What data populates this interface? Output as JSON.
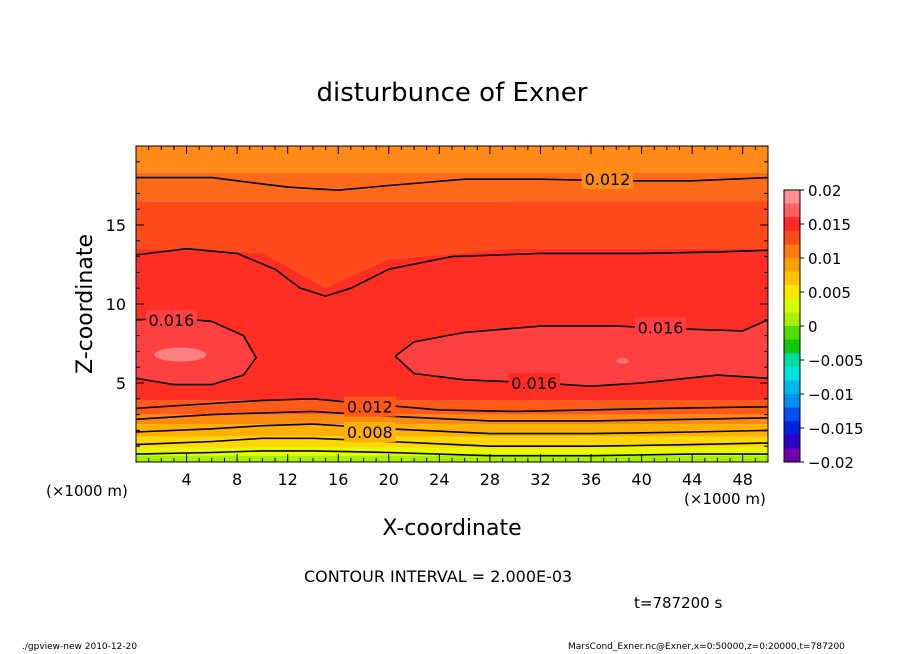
{
  "chart_data": {
    "type": "heatmap",
    "title": "disturbunce of Exner",
    "xlabel": "X-coordinate",
    "ylabel": "Z-coordinate",
    "x_unit": "(×1000 m)",
    "y_unit": "(×1000 m)",
    "xlim": [
      0,
      50
    ],
    "ylim": [
      0,
      20
    ],
    "x_ticks": [
      4,
      8,
      12,
      16,
      20,
      24,
      28,
      32,
      36,
      40,
      44,
      48
    ],
    "y_ticks": [
      5,
      10,
      15
    ],
    "colorbar": {
      "labels": [
        "0.02",
        "0.015",
        "0.01",
        "0.005",
        "0",
        "−0.005",
        "−0.01",
        "−0.015",
        "−0.02"
      ],
      "levels": [
        0.02,
        0.015,
        0.01,
        0.005,
        0,
        -0.005,
        -0.01,
        -0.015,
        -0.02
      ],
      "colors": [
        "#ff9090",
        "#ff6060",
        "#ff2828",
        "#ff4a1c",
        "#ff7a10",
        "#ffa000",
        "#ffc400",
        "#ffe800",
        "#d8ff00",
        "#a8f000",
        "#50e000",
        "#10c800",
        "#00dca0",
        "#00e0e0",
        "#00b8f0",
        "#0090f0",
        "#0050f0",
        "#0020e0",
        "#3000c8",
        "#7000b0"
      ]
    },
    "contour_interval": "CONTOUR INTERVAL = 2.000E-03",
    "contour_labels": [
      "0.012",
      "0.016",
      "0.016",
      "0.016",
      "0.012",
      "0.008"
    ],
    "contours": [
      {
        "level": 0.012,
        "points": [
          [
            0,
            18.0
          ],
          [
            6,
            18.0
          ],
          [
            12,
            17.4
          ],
          [
            16,
            17.2
          ],
          [
            20,
            17.5
          ],
          [
            26,
            17.9
          ],
          [
            32,
            17.9
          ],
          [
            38,
            17.8
          ],
          [
            44,
            17.8
          ],
          [
            50,
            18.0
          ]
        ]
      },
      {
        "level": 0.016,
        "points": [
          [
            0,
            13.1
          ],
          [
            4,
            13.5
          ],
          [
            8,
            13.2
          ],
          [
            11,
            12.2
          ],
          [
            13,
            11.0
          ],
          [
            15,
            10.5
          ],
          [
            17,
            11.0
          ],
          [
            20,
            12.2
          ],
          [
            25,
            13.0
          ],
          [
            32,
            13.2
          ],
          [
            40,
            13.2
          ],
          [
            46,
            13.3
          ],
          [
            50,
            13.4
          ]
        ]
      },
      {
        "level": 0.016,
        "points": [
          [
            0,
            9.0
          ],
          [
            3,
            9.1
          ],
          [
            6,
            8.9
          ],
          [
            8.5,
            8.0
          ],
          [
            9.5,
            6.6
          ],
          [
            8.5,
            5.5
          ],
          [
            6,
            4.9
          ],
          [
            3,
            4.9
          ],
          [
            0,
            5.3
          ]
        ]
      },
      {
        "level": 0.016,
        "points": [
          [
            20.5,
            6.7
          ],
          [
            22,
            7.6
          ],
          [
            26,
            8.2
          ],
          [
            32,
            8.6
          ],
          [
            38,
            8.6
          ],
          [
            44,
            8.4
          ],
          [
            48,
            8.3
          ],
          [
            50,
            9.0
          ],
          [
            50,
            5.3
          ],
          [
            46,
            5.5
          ],
          [
            40,
            5.0
          ],
          [
            36,
            4.8
          ],
          [
            32,
            5.0
          ],
          [
            26,
            5.2
          ],
          [
            22,
            5.6
          ],
          [
            20.5,
            6.7
          ]
        ]
      },
      {
        "level": 0.012,
        "points": [
          [
            0,
            3.4
          ],
          [
            6,
            3.7
          ],
          [
            10,
            3.9
          ],
          [
            14,
            4.0
          ],
          [
            18,
            3.7
          ],
          [
            24,
            3.3
          ],
          [
            30,
            3.2
          ],
          [
            36,
            3.3
          ],
          [
            42,
            3.4
          ],
          [
            50,
            3.5
          ]
        ]
      },
      {
        "level": 0.01,
        "points": [
          [
            0,
            2.7
          ],
          [
            6,
            3.0
          ],
          [
            10,
            3.1
          ],
          [
            14,
            3.2
          ],
          [
            20,
            2.9
          ],
          [
            28,
            2.6
          ],
          [
            36,
            2.6
          ],
          [
            44,
            2.7
          ],
          [
            50,
            2.8
          ]
        ]
      },
      {
        "level": 0.008,
        "points": [
          [
            0,
            1.9
          ],
          [
            6,
            2.1
          ],
          [
            10,
            2.3
          ],
          [
            14,
            2.4
          ],
          [
            20,
            2.1
          ],
          [
            28,
            1.8
          ],
          [
            36,
            1.8
          ],
          [
            44,
            1.9
          ],
          [
            50,
            2.0
          ]
        ]
      },
      {
        "level": 0.006,
        "points": [
          [
            0,
            1.1
          ],
          [
            6,
            1.3
          ],
          [
            10,
            1.5
          ],
          [
            14,
            1.5
          ],
          [
            20,
            1.3
          ],
          [
            28,
            1.0
          ],
          [
            36,
            1.0
          ],
          [
            44,
            1.1
          ],
          [
            50,
            1.2
          ]
        ]
      },
      {
        "level": 0.004,
        "points": [
          [
            0,
            0.5
          ],
          [
            6,
            0.6
          ],
          [
            10,
            0.7
          ],
          [
            14,
            0.7
          ],
          [
            20,
            0.6
          ],
          [
            28,
            0.4
          ],
          [
            36,
            0.4
          ],
          [
            44,
            0.5
          ],
          [
            50,
            0.5
          ]
        ]
      }
    ],
    "fill_bands": [
      {
        "color": "#ff8a18",
        "top": 20,
        "bottom": 18.3
      },
      {
        "color": "#ff6a1a",
        "top": 18.3,
        "bottom": 16.5
      },
      {
        "color": "#ff4a1c",
        "top": 16.5,
        "bottom": 13.5
      },
      {
        "color": "#ff2e24",
        "top": 13.5,
        "bottom": 3.9
      },
      {
        "color": "#ff5a18",
        "top": 3.9,
        "bottom": 3.0
      },
      {
        "color": "#ff8a10",
        "top": 3.0,
        "bottom": 2.4
      },
      {
        "color": "#ffb000",
        "top": 2.4,
        "bottom": 1.6
      },
      {
        "color": "#ffd800",
        "top": 1.6,
        "bottom": 0.9
      },
      {
        "color": "#e8f800",
        "top": 0.9,
        "bottom": 0.4
      },
      {
        "color": "#a8f000",
        "top": 0.4,
        "bottom": 0
      }
    ]
  },
  "footer": {
    "time": "t=787200 s",
    "left": "./gpview-new  2010-12-20",
    "right": "MarsCond_Exner.nc@Exner,x=0:50000,z=0:20000,t=787200"
  }
}
